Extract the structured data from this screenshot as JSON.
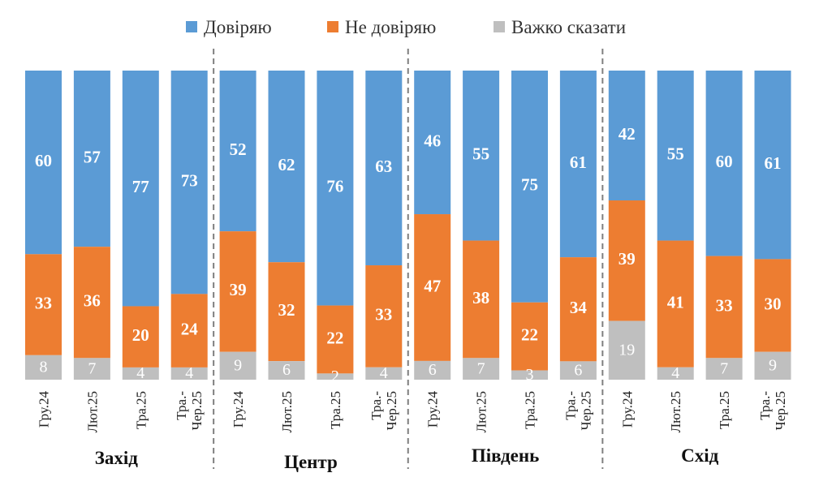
{
  "chart_data": {
    "type": "bar",
    "stacked": true,
    "normalized_to_100": true,
    "legend": {
      "position": "top",
      "items": [
        {
          "label": "Довіряю",
          "color": "#5b9bd5"
        },
        {
          "label": "Не довіряю",
          "color": "#ed7d31"
        },
        {
          "label": "Важко сказати",
          "color": "#bfbfbf"
        }
      ]
    },
    "groups": [
      {
        "name": "Захід",
        "bars": [
          {
            "label": "Гру.24",
            "trust": 60,
            "distrust": 33,
            "hard_to_say": 8
          },
          {
            "label": "Лют.25",
            "trust": 57,
            "distrust": 36,
            "hard_to_say": 7
          },
          {
            "label": "Тра.25",
            "trust": 77,
            "distrust": 20,
            "hard_to_say": 4
          },
          {
            "label": "Тра.-Чер.25",
            "trust": 73,
            "distrust": 24,
            "hard_to_say": 4
          }
        ]
      },
      {
        "name": "Центр",
        "bars": [
          {
            "label": "Гру.24",
            "trust": 52,
            "distrust": 39,
            "hard_to_say": 9
          },
          {
            "label": "Лют.25",
            "trust": 62,
            "distrust": 32,
            "hard_to_say": 6
          },
          {
            "label": "Тра.25",
            "trust": 76,
            "distrust": 22,
            "hard_to_say": 2
          },
          {
            "label": "Тра.-Чер.25",
            "trust": 63,
            "distrust": 33,
            "hard_to_say": 4
          }
        ]
      },
      {
        "name": "Південь",
        "bars": [
          {
            "label": "Гру.24",
            "trust": 46,
            "distrust": 47,
            "hard_to_say": 6
          },
          {
            "label": "Лют.25",
            "trust": 55,
            "distrust": 38,
            "hard_to_say": 7
          },
          {
            "label": "Тра.25",
            "trust": 75,
            "distrust": 22,
            "hard_to_say": 3
          },
          {
            "label": "Тра.-Чер.25",
            "trust": 61,
            "distrust": 34,
            "hard_to_say": 6
          }
        ]
      },
      {
        "name": "Схід",
        "bars": [
          {
            "label": "Гру.24",
            "trust": 42,
            "distrust": 39,
            "hard_to_say": 19
          },
          {
            "label": "Лют.25",
            "trust": 55,
            "distrust": 41,
            "hard_to_say": 4
          },
          {
            "label": "Тра.25",
            "trust": 60,
            "distrust": 33,
            "hard_to_say": 7
          },
          {
            "label": "Тра.-Чер.25",
            "trust": 61,
            "distrust": 30,
            "hard_to_say": 9
          }
        ]
      }
    ],
    "group_separators": "dashed vertical lines",
    "grid": false
  }
}
